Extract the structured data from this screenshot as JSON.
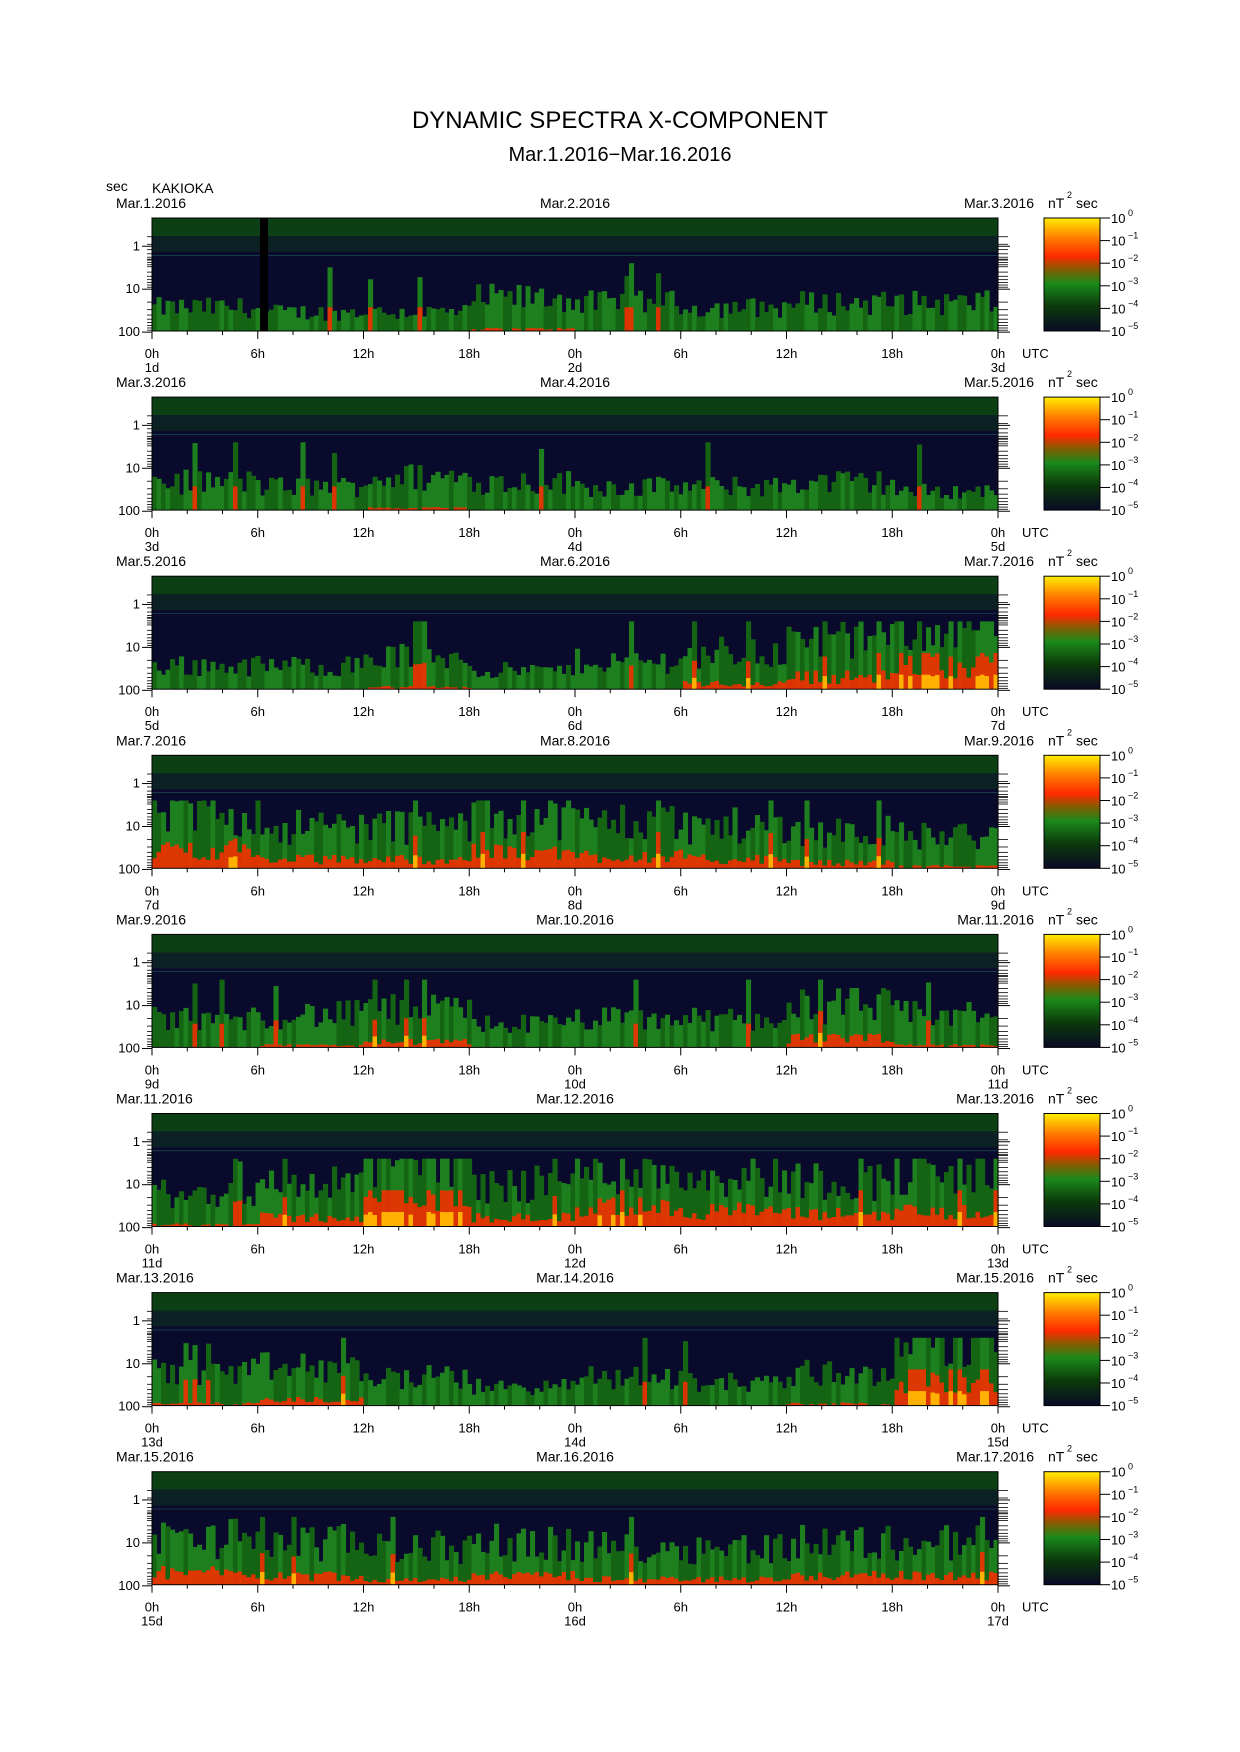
{
  "chart_data": {
    "type": "heatmap",
    "title": "DYNAMIC SPECTRA X-COMPONENT",
    "subtitle": "Mar.1.2016−Mar.16.2016",
    "station": "KAKIOKA",
    "ylabel": "sec",
    "y_ticks": [
      "1",
      "10",
      "100"
    ],
    "y_scale": "log",
    "x_ticks": [
      "0h",
      "6h",
      "12h",
      "18h",
      "0h",
      "6h",
      "12h",
      "18h",
      "0h"
    ],
    "time_zone": "UTC",
    "colorbar": {
      "unit": "nT",
      "unit_power": "2",
      "unit_suffix": "sec",
      "base": "10",
      "exponents": [
        "0",
        "−1",
        "−2",
        "−3",
        "−4",
        "−5"
      ],
      "colors": [
        "#ffee00",
        "#ff2a00",
        "#0f6b0f",
        "#0a0a26"
      ]
    },
    "panels": [
      {
        "date_start": "Mar.1.2016",
        "date_mid": "Mar.2.2016",
        "date_end": "Mar.3.2016",
        "day_start": "1d",
        "day_mid": "2d",
        "day_end": "3d",
        "activity": [
          0.25,
          0.2,
          0.2,
          0.35,
          0.3,
          0.25,
          0.3,
          0.3
        ]
      },
      {
        "date_start": "Mar.3.2016",
        "date_mid": "Mar.4.2016",
        "date_end": "Mar.5.2016",
        "day_start": "3d",
        "day_mid": "4d",
        "day_end": "5d",
        "activity": [
          0.3,
          0.25,
          0.35,
          0.3,
          0.25,
          0.25,
          0.3,
          0.2
        ]
      },
      {
        "date_start": "Mar.5.2016",
        "date_mid": "Mar.6.2016",
        "date_end": "Mar.7.2016",
        "day_start": "5d",
        "day_mid": "6d",
        "day_end": "7d",
        "activity": [
          0.25,
          0.25,
          0.35,
          0.2,
          0.3,
          0.4,
          0.5,
          0.7
        ]
      },
      {
        "date_start": "Mar.7.2016",
        "date_mid": "Mar.8.2016",
        "date_end": "Mar.9.2016",
        "day_start": "7d",
        "day_mid": "8d",
        "day_end": "9d",
        "activity": [
          0.6,
          0.45,
          0.45,
          0.55,
          0.5,
          0.45,
          0.4,
          0.35
        ]
      },
      {
        "date_start": "Mar.9.2016",
        "date_mid": "Mar.10.2016",
        "date_end": "Mar.11.2016",
        "day_start": "9d",
        "day_mid": "10d",
        "day_end": "11d",
        "activity": [
          0.3,
          0.35,
          0.4,
          0.25,
          0.3,
          0.3,
          0.45,
          0.35
        ]
      },
      {
        "date_start": "Mar.11.2016",
        "date_mid": "Mar.12.2016",
        "date_end": "Mar.13.2016",
        "day_start": "11d",
        "day_mid": "12d",
        "day_end": "13d",
        "activity": [
          0.35,
          0.45,
          0.75,
          0.45,
          0.6,
          0.55,
          0.5,
          0.55
        ]
      },
      {
        "date_start": "Mar.13.2016",
        "date_mid": "Mar.14.2016",
        "date_end": "Mar.15.2016",
        "day_start": "13d",
        "day_mid": "14d",
        "day_end": "15d",
        "activity": [
          0.35,
          0.4,
          0.3,
          0.2,
          0.3,
          0.25,
          0.35,
          0.75
        ]
      },
      {
        "date_start": "Mar.15.2016",
        "date_mid": "Mar.16.2016",
        "date_end": "Mar.17.2016",
        "day_start": "15d",
        "day_mid": "16d",
        "day_end": "17d",
        "activity": [
          0.5,
          0.45,
          0.4,
          0.45,
          0.4,
          0.4,
          0.45,
          0.45
        ]
      }
    ]
  }
}
